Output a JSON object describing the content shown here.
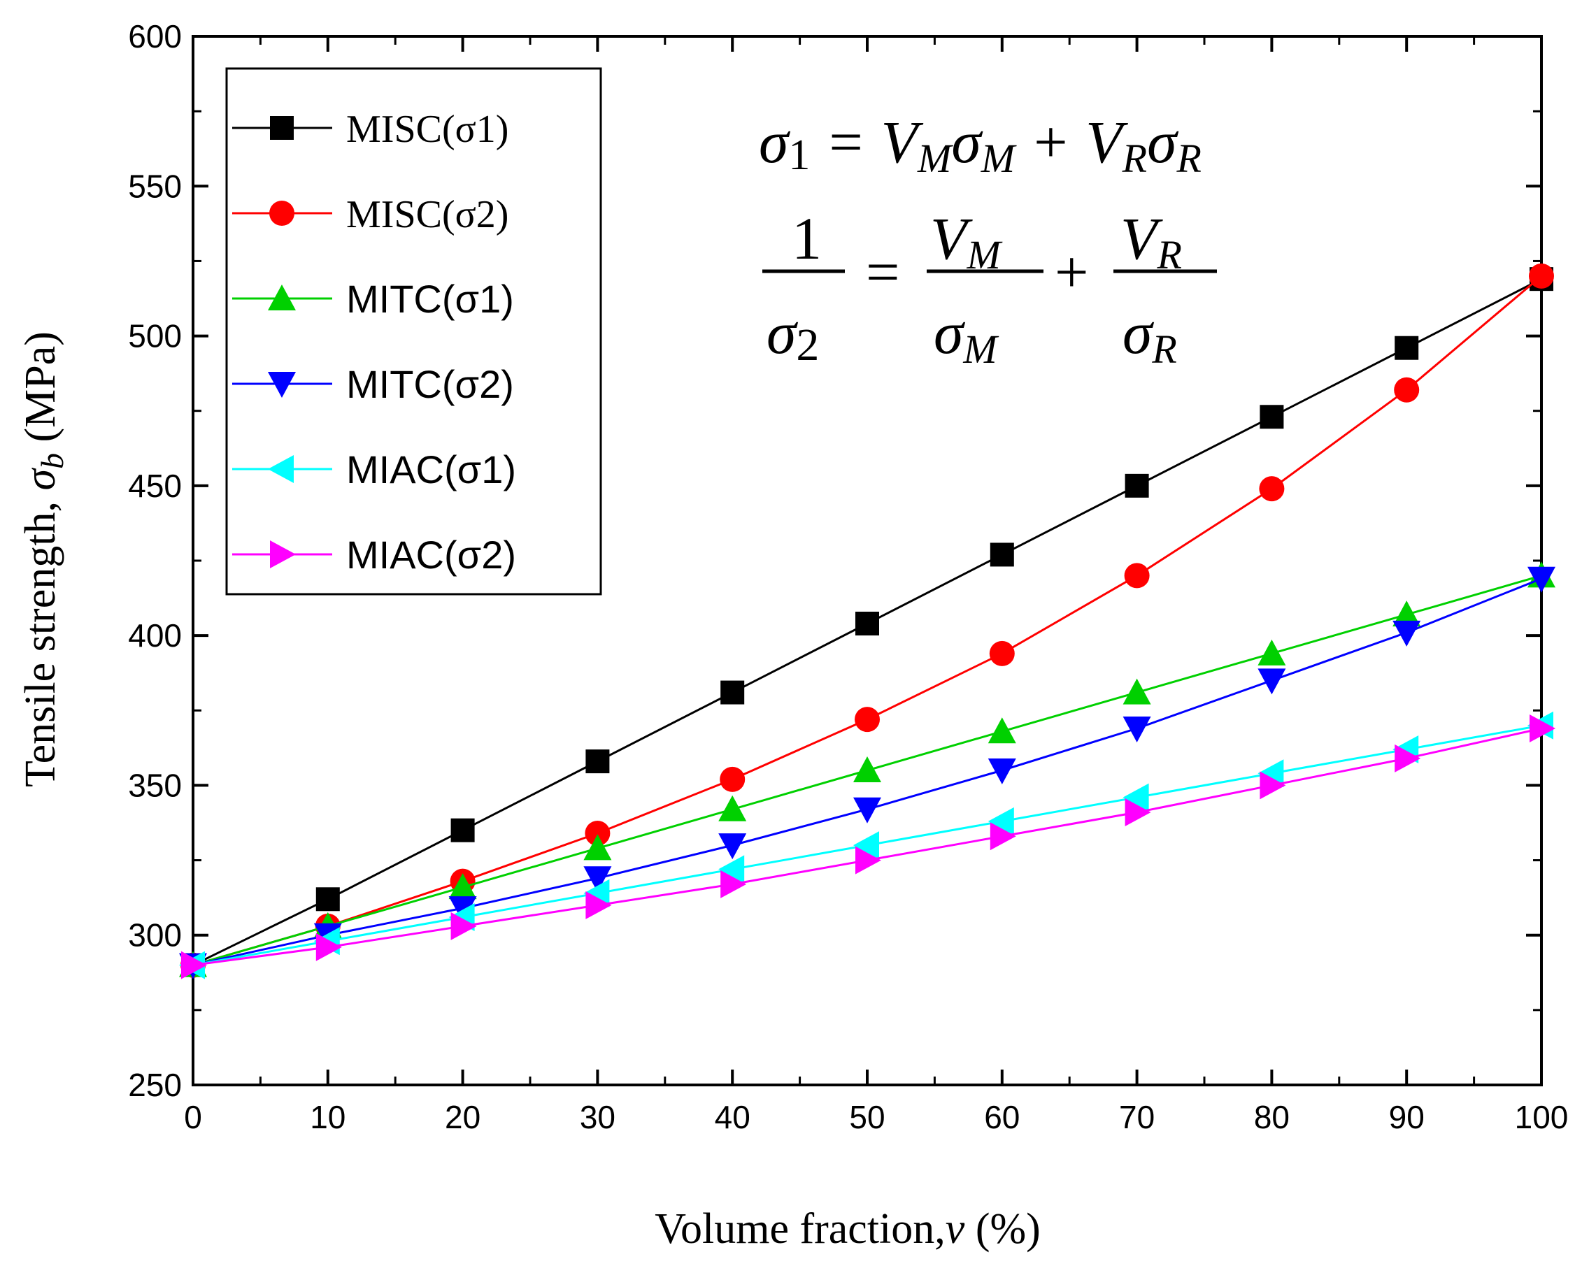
{
  "chart_data": {
    "type": "line",
    "xlabel_main": "Volume fraction,",
    "xlabel_var": "v",
    "xlabel_unit": " (%)",
    "ylabel_main": "Tensile strength, ",
    "ylabel_var": "σ",
    "ylabel_sub": "b",
    "ylabel_unit": " (MPa)",
    "xlim": [
      0,
      100
    ],
    "ylim": [
      250,
      600
    ],
    "xticks": [
      0,
      10,
      20,
      30,
      40,
      50,
      60,
      70,
      80,
      90,
      100
    ],
    "yticks": [
      250,
      300,
      350,
      400,
      450,
      500,
      550,
      600
    ],
    "grid": false,
    "legend_position": "top-left",
    "x": [
      0,
      10,
      20,
      30,
      40,
      50,
      60,
      70,
      80,
      90,
      100
    ],
    "series": [
      {
        "name": "MISC(σ1)",
        "color": "#000000",
        "marker": "square",
        "values": [
          290,
          312,
          335,
          358,
          381,
          404,
          427,
          450,
          473,
          496,
          519
        ]
      },
      {
        "name": "MISC(σ2)",
        "color": "#ff0000",
        "marker": "circle",
        "values": [
          290,
          303,
          318,
          334,
          352,
          372,
          394,
          420,
          449,
          482,
          520
        ]
      },
      {
        "name": "MITC(σ1)",
        "color": "#00d000",
        "marker": "triangle-up",
        "values": [
          290,
          303,
          316,
          329,
          342,
          355,
          368,
          381,
          394,
          407,
          420
        ]
      },
      {
        "name": "MITC(σ2)",
        "color": "#0000ff",
        "marker": "triangle-down",
        "values": [
          290,
          300,
          309,
          319,
          330,
          342,
          355,
          369,
          385,
          401,
          419
        ]
      },
      {
        "name": "MIAC(σ1)",
        "color": "#00ffff",
        "marker": "triangle-left",
        "values": [
          290,
          298,
          306,
          314,
          322,
          330,
          338,
          346,
          354,
          362,
          370
        ]
      },
      {
        "name": "MIAC(σ2)",
        "color": "#ff00ff",
        "marker": "triangle-right",
        "values": [
          290,
          296,
          303,
          310,
          317,
          325,
          333,
          341,
          350,
          359,
          369
        ]
      }
    ],
    "annotation": {
      "eq1_lhs": "σ",
      "eq1_lhs_sub": "1",
      "eq1_rhs": " = V",
      "eq1_m": "M",
      "eq1_sigma": "σ",
      "eq1_plus": " + V",
      "eq1_r": "R",
      "eq2_one": "1",
      "eq2_sigma": "σ",
      "eq2_sub": "2",
      "eq2_equals": "=",
      "eq2_plus": "+",
      "eq2_vm": "V",
      "eq2_vr": "V",
      "eq2_sm": "σ",
      "eq2_sr": "σ",
      "sub_m": "M",
      "sub_r": "R"
    }
  }
}
